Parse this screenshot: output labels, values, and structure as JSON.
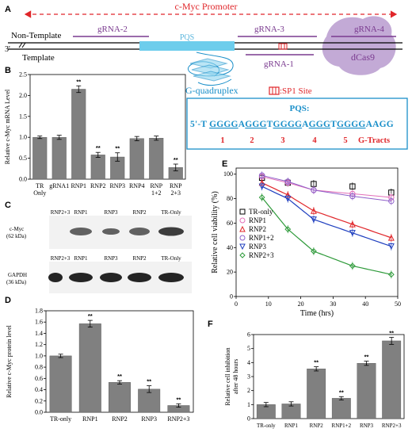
{
  "panels": {
    "a": "A",
    "b": "B",
    "c": "C",
    "d": "D",
    "e": "E",
    "f": "F"
  },
  "schematic": {
    "promoter": "c-Myc Promoter",
    "non_template": "Non-Template",
    "template": "Template",
    "three_prime": "3'",
    "gRNA2": "gRNA-2",
    "gRNA3": "gRNA-3",
    "gRNA4": "gRNA-4",
    "gRNA1": "gRNA-1",
    "pqs_region": "PQS",
    "dcas9": "dCas9",
    "g_quadruplex": "G-quadruplex",
    "sp1_site": ":SP1 Site",
    "pqs_title": "PQS:",
    "pqs_prefix": "5'-T",
    "pqs_seq": [
      {
        "text": "GGGG",
        "type": "g"
      },
      {
        "text": "A",
        "type": "n"
      },
      {
        "text": "GGG",
        "type": "g"
      },
      {
        "text": "T",
        "type": "n"
      },
      {
        "text": "GGGG",
        "type": "g"
      },
      {
        "text": "A",
        "type": "n"
      },
      {
        "text": "GGG",
        "type": "g"
      },
      {
        "text": "T",
        "type": "n"
      },
      {
        "text": "GGGG",
        "type": "g"
      },
      {
        "text": "AAGG",
        "type": "n"
      }
    ],
    "tract_numbers": [
      "1",
      "2",
      "3",
      "4",
      "5"
    ],
    "g_tracts": "G-Tracts",
    "colors": {
      "purple": "#7a3a8f",
      "red": "#e0262a",
      "blue": "#1a8fc9",
      "bar": "#808080"
    }
  },
  "chart_data": [
    {
      "panel": "B",
      "type": "bar",
      "ylabel": "Relative c-Myc mRNA Level",
      "categories": [
        "TR Only",
        "gRNA1",
        "RNP1",
        "RNP2",
        "RNP3",
        "RNP4",
        "RNP 1+2",
        "RNP 2+3"
      ],
      "values": [
        1.0,
        1.0,
        2.15,
        0.58,
        0.53,
        0.97,
        0.98,
        0.28
      ],
      "errors": [
        0.03,
        0.05,
        0.08,
        0.06,
        0.1,
        0.05,
        0.05,
        0.08
      ],
      "significance": [
        "",
        "",
        "**",
        "**",
        "**",
        "",
        "",
        "**"
      ],
      "yticks": [
        "0.0",
        "0.5",
        "1.0",
        "1.5",
        "2.0",
        "2.5"
      ],
      "ylim": [
        0,
        2.5
      ]
    },
    {
      "panel": "D",
      "type": "bar",
      "ylabel": "Relative c-Myc protein level",
      "categories": [
        "TR-only",
        "RNP1",
        "RNP2",
        "RNP3",
        "RNP2+3"
      ],
      "values": [
        1.0,
        1.57,
        0.53,
        0.41,
        0.12
      ],
      "errors": [
        0.03,
        0.06,
        0.03,
        0.06,
        0.03
      ],
      "significance": [
        "",
        "**",
        "**",
        "**",
        "**"
      ],
      "yticks": [
        "0.0",
        "0.2",
        "0.4",
        "0.6",
        "0.8",
        "1.0",
        "1.2",
        "1.4",
        "1.6",
        "1.8"
      ],
      "ylim": [
        0,
        1.8
      ]
    },
    {
      "panel": "E",
      "type": "line",
      "xlabel": "Time (hrs)",
      "ylabel": "Relative cell viability (%)",
      "xticks": [
        "0",
        "10",
        "20",
        "30",
        "40",
        "50"
      ],
      "yticks": [
        "0",
        "20",
        "40",
        "60",
        "80",
        "100"
      ],
      "xlim": [
        0,
        50
      ],
      "ylim": [
        0,
        105
      ],
      "legend_position": "top-left",
      "series": [
        {
          "name": "TR-only",
          "color": "#000000",
          "marker": "square",
          "x": [
            8,
            16,
            24,
            36,
            48
          ],
          "y": [
            97,
            93,
            92,
            90,
            85
          ]
        },
        {
          "name": "RNP1",
          "color": "#e26fb8",
          "marker": "circle",
          "x": [
            8,
            16,
            24,
            36,
            48
          ],
          "y": [
            98,
            93,
            87,
            84,
            81
          ]
        },
        {
          "name": "RNP2",
          "color": "#e0262a",
          "marker": "triangle-up",
          "x": [
            8,
            16,
            24,
            36,
            48
          ],
          "y": [
            93,
            83,
            70,
            59,
            48
          ]
        },
        {
          "name": "RNP1+2",
          "color": "#8e5fc9",
          "marker": "circle",
          "x": [
            8,
            16,
            24,
            36,
            48
          ],
          "y": [
            99,
            94,
            87,
            82,
            78
          ]
        },
        {
          "name": "RNP3",
          "color": "#1f3fbf",
          "marker": "triangle-down",
          "x": [
            8,
            16,
            24,
            36,
            48
          ],
          "y": [
            90,
            80,
            63,
            52,
            41
          ]
        },
        {
          "name": "RNP2+3",
          "color": "#2e9a3a",
          "marker": "diamond",
          "x": [
            8,
            16,
            24,
            36,
            48
          ],
          "y": [
            81,
            55,
            37,
            25,
            18
          ]
        }
      ]
    },
    {
      "panel": "F",
      "type": "bar",
      "ylabel": "Relative cell inhibition after 48 hours",
      "categories": [
        "TR-only",
        "RNP1",
        "RNP2",
        "RNP1+2",
        "RNP3",
        "RNP2+3"
      ],
      "values": [
        1.0,
        1.05,
        3.55,
        1.45,
        3.95,
        5.55
      ],
      "errors": [
        0.15,
        0.15,
        0.15,
        0.12,
        0.15,
        0.25
      ],
      "significance": [
        "",
        "",
        "**",
        "**",
        "**",
        "**"
      ],
      "yticks": [
        "0",
        "1",
        "2",
        "3",
        "4",
        "5",
        "6"
      ],
      "ylim": [
        0,
        6
      ]
    }
  ],
  "blots": {
    "cmyc_label": "c-Myc\n(62 kDa)",
    "cmyc_label_1": "c-Myc",
    "cmyc_label_2": "(62 kDa)",
    "gapdh_label_1": "GAPDH",
    "gapdh_label_2": "(36 kDa)",
    "lanes": [
      "RNP2+3",
      "RNP1",
      "RNP3",
      "RNP2",
      "TR-Only"
    ]
  }
}
